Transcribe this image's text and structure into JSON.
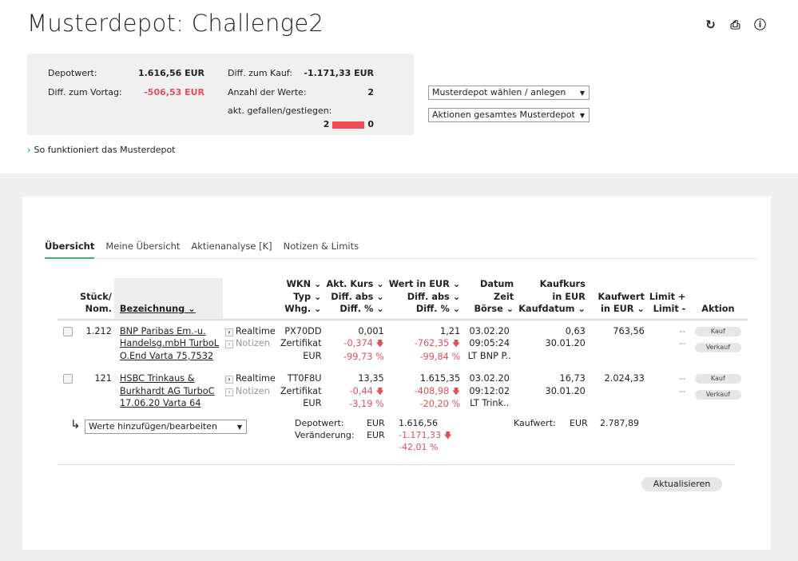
{
  "header": {
    "title": "Musterdepot: Challenge2",
    "icons": [
      "refresh-icon",
      "print-icon",
      "help-icon"
    ]
  },
  "summary": {
    "depotwert_label": "Depotwert:",
    "depotwert": "1.616,56 EUR",
    "vortag_label": "Diff. zum Vortag:",
    "vortag": "-506,53 EUR",
    "kauf_label": "Diff. zum Kauf:",
    "kauf": "-1.171,33 EUR",
    "anzahl_label": "Anzahl der Werte:",
    "anzahl": "2",
    "gefallen_label": "akt. gefallen/gestiegen:",
    "gefallen": "2",
    "gestiegen": "0"
  },
  "selects": {
    "depot": "Musterdepot wählen / anlegen",
    "aktionen": "Aktionen gesamtes Musterdepot"
  },
  "how_link": "So funktioniert das Musterdepot",
  "tabs": [
    "Übersicht",
    "Meine Übersicht",
    "Aktienanalyse [K]",
    "Notizen & Limits"
  ],
  "table": {
    "headers": {
      "stueck1": "Stück/",
      "stueck2": "Nom.",
      "bez": "Bezeichnung",
      "wkn": "WKN",
      "typ": "Typ",
      "whg": "Whg.",
      "kurs": "Akt. Kurs",
      "diffabs": "Diff. abs",
      "diffpct": "Diff. %",
      "wert": "Wert in EUR",
      "wdiffabs": "Diff. abs",
      "wdiffpct": "Diff. %",
      "datum": "Datum",
      "zeit": "Zeit",
      "boerse": "Börse",
      "kk1": "Kaufkurs",
      "kk2": "in EUR",
      "kk3": "Kaufdatum",
      "kw1": "Kaufwert",
      "kw2": "in EUR",
      "lim1": "Limit +",
      "lim2": "Limit -",
      "aktion": "Aktion"
    },
    "link_realtime": "Realtime",
    "link_notizen": "Notizen",
    "kauf": "Kauf",
    "verkauf": "Verkauf",
    "rows": [
      {
        "stueck": "1.212",
        "bez": [
          "BNP Paribas Em.-u.",
          "Handelsg.mbH TurboL",
          "O.End Varta 75,7532"
        ],
        "wkn": "PX70DD",
        "typ": "Zertifikat",
        "whg": "EUR",
        "kurs": "0,001",
        "diffabs": "-0,374",
        "diffpct": "-99,73 %",
        "wert": "1,21",
        "wdiffabs": "-762,35",
        "wdiffpct": "-99,84 %",
        "datum": "03.02.20",
        "zeit": "09:05:24",
        "boerse": "LT BNP P..",
        "kaufkurs": "0,63",
        "kaufdatum": "30.01.20",
        "kaufwert": "763,56",
        "limplus": "--",
        "limminus": "--"
      },
      {
        "stueck": "121",
        "bez": [
          "HSBC Trinkaus &",
          "Burkhardt AG TurboC",
          "17.06.20 Varta 64"
        ],
        "wkn": "TT0F8U",
        "typ": "Zertifikat",
        "whg": "EUR",
        "kurs": "13,35",
        "diffabs": "-0,44",
        "diffpct": "-3,19 %",
        "wert": "1.615,35",
        "wdiffabs": "-408,98",
        "wdiffpct": "-20,20 %",
        "datum": "03.02.20",
        "zeit": "09:12:02",
        "boerse": "LT Trink..",
        "kaufkurs": "16,73",
        "kaufdatum": "30.01.20",
        "kaufwert": "2.024,33",
        "limplus": "--",
        "limminus": "--"
      }
    ]
  },
  "footer": {
    "add_select": "Werte hinzufügen/bearbeiten",
    "depotwert_label": "Depotwert:",
    "veraenderung_label": "Veränderung:",
    "cur": "EUR",
    "depotwert": "1.616,56",
    "veraenderung": "-1.171,33",
    "veraenderung_pct": "-42,01 %",
    "kaufwert_label": "Kaufwert:",
    "kaufwert": "2.787,89",
    "refresh": "Aktualisieren"
  },
  "colors": {
    "accent": "#3bb36e",
    "negative": "#e0505a"
  }
}
